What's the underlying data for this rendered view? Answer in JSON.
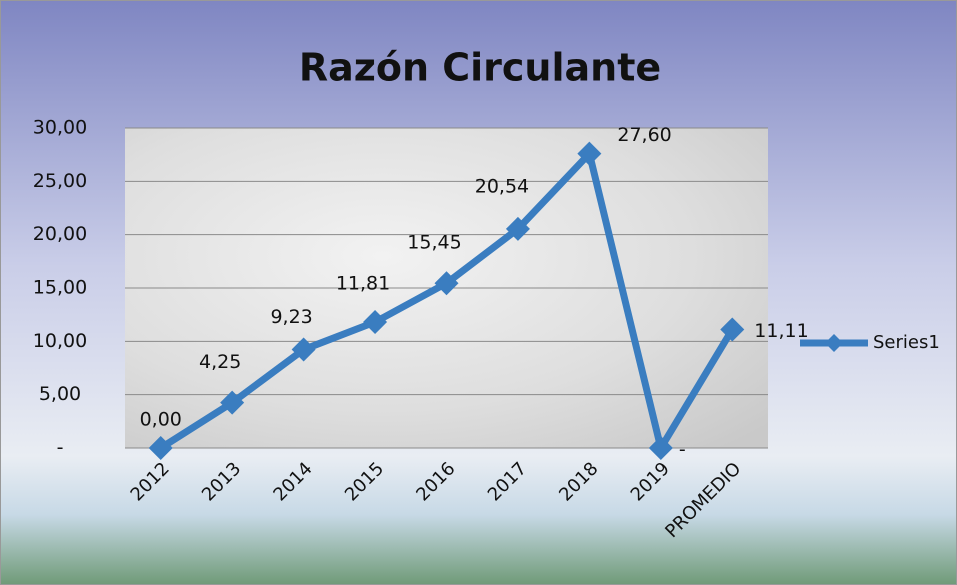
{
  "chart_data": {
    "type": "line",
    "title": "Razón Circulante",
    "categories": [
      "2012",
      "2013",
      "2014",
      "2015",
      "2016",
      "2017",
      "2018",
      "2019",
      "PROMEDIO"
    ],
    "series": [
      {
        "name": "Series1",
        "color": "#3a7dc0",
        "values": [
          0,
          4.25,
          9.23,
          11.81,
          15.45,
          20.54,
          27.6,
          0,
          11.11
        ],
        "value_labels": [
          "0,00",
          "4,25",
          "9,23",
          "11,81",
          "15,45",
          "20,54",
          "27,60",
          "-",
          "11,11"
        ]
      }
    ],
    "ylim": [
      0,
      30
    ],
    "yticks": [
      {
        "value": 0,
        "label": "-"
      },
      {
        "value": 5,
        "label": "5,00"
      },
      {
        "value": 10,
        "label": "10,00"
      },
      {
        "value": 15,
        "label": "15,00"
      },
      {
        "value": 20,
        "label": "20,00"
      },
      {
        "value": 25,
        "label": "25,00"
      },
      {
        "value": 30,
        "label": "30,00"
      }
    ],
    "grid": true,
    "legend": "right"
  }
}
